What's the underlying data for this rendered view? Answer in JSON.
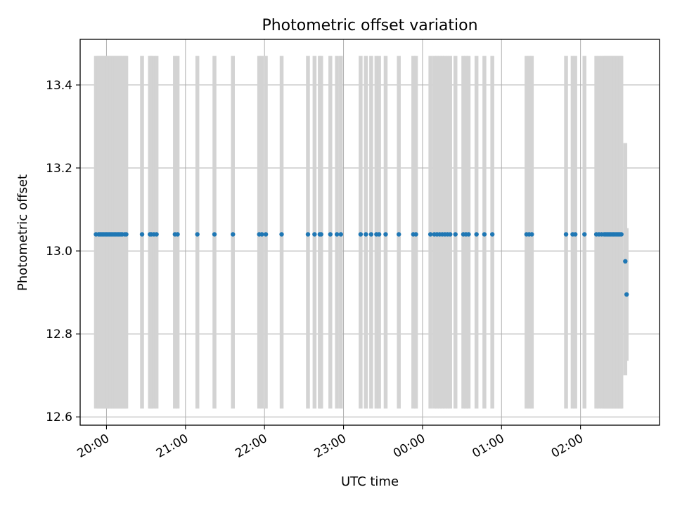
{
  "chart_data": {
    "type": "scatter",
    "title": "Photometric offset variation",
    "xlabel": "UTC time",
    "ylabel": "Photometric offset",
    "x_axis": "time",
    "xlim": [
      "19:40",
      "03:00"
    ],
    "ylim": [
      12.58,
      13.51
    ],
    "grid": true,
    "xticks": [
      "20:00",
      "21:00",
      "22:00",
      "23:00",
      "00:00",
      "01:00",
      "02:00"
    ],
    "yticks": [
      "12.6",
      "12.8",
      "13.0",
      "13.2",
      "13.4"
    ],
    "marker_color": "#1f77b4",
    "errorbar_color": "#d3d3d3",
    "series": [
      {
        "x": [
          "19:52",
          "19:54",
          "19:55",
          "19:56",
          "19:57",
          "19:58",
          "19:59",
          "20:00",
          "20:01",
          "20:02",
          "20:03",
          "20:04",
          "20:05",
          "20:06",
          "20:07",
          "20:08",
          "20:09",
          "20:10",
          "20:11",
          "20:12",
          "20:14",
          "20:15",
          "20:27",
          "20:33",
          "20:34",
          "20:36",
          "20:38",
          "20:52",
          "20:54",
          "21:09",
          "21:22",
          "21:36",
          "21:56",
          "21:58",
          "22:01",
          "22:13",
          "22:33",
          "22:38",
          "22:42",
          "22:43",
          "22:50",
          "22:55",
          "22:58",
          "23:13",
          "23:17",
          "23:21",
          "23:25",
          "23:27",
          "23:32",
          "23:42",
          "23:53",
          "23:55",
          "00:06",
          "00:09",
          "00:11",
          "00:13",
          "00:15",
          "00:17",
          "00:19",
          "00:21",
          "00:25",
          "00:31",
          "00:33",
          "00:35",
          "00:41",
          "00:47",
          "00:53",
          "01:19",
          "01:21",
          "01:23",
          "01:49",
          "01:54",
          "01:56",
          "02:03",
          "02:12",
          "02:14",
          "02:16",
          "02:18",
          "02:19",
          "02:20",
          "02:21",
          "02:22",
          "02:23",
          "02:24",
          "02:25",
          "02:26",
          "02:27",
          "02:28",
          "02:29",
          "02:30",
          "02:31"
        ],
        "y": [
          13.04,
          13.04,
          13.04,
          13.04,
          13.04,
          13.04,
          13.04,
          13.04,
          13.04,
          13.04,
          13.04,
          13.04,
          13.04,
          13.04,
          13.04,
          13.04,
          13.04,
          13.04,
          13.04,
          13.04,
          13.04,
          13.04,
          13.04,
          13.04,
          13.04,
          13.04,
          13.04,
          13.04,
          13.04,
          13.04,
          13.04,
          13.04,
          13.04,
          13.04,
          13.04,
          13.04,
          13.04,
          13.04,
          13.04,
          13.04,
          13.04,
          13.04,
          13.04,
          13.04,
          13.04,
          13.04,
          13.04,
          13.04,
          13.04,
          13.04,
          13.04,
          13.04,
          13.04,
          13.04,
          13.04,
          13.04,
          13.04,
          13.04,
          13.04,
          13.04,
          13.04,
          13.04,
          13.04,
          13.04,
          13.04,
          13.04,
          13.04,
          13.04,
          13.04,
          13.04,
          13.04,
          13.04,
          13.04,
          13.04,
          13.04,
          13.04,
          13.04,
          13.04,
          13.04,
          13.04,
          13.04,
          13.04,
          13.04,
          13.04,
          13.04,
          13.04,
          13.04,
          13.04,
          13.04,
          13.04,
          13.04
        ],
        "yerr_low": [
          12.62,
          12.62,
          12.62,
          12.62,
          12.62,
          12.62,
          12.62,
          12.62,
          12.62,
          12.62,
          12.62,
          12.62,
          12.62,
          12.62,
          12.62,
          12.62,
          12.62,
          12.62,
          12.62,
          12.62,
          12.62,
          12.62,
          12.62,
          12.62,
          12.62,
          12.62,
          12.62,
          12.62,
          12.62,
          12.62,
          12.62,
          12.62,
          12.62,
          12.62,
          12.62,
          12.62,
          12.62,
          12.62,
          12.62,
          12.62,
          12.62,
          12.62,
          12.62,
          12.62,
          12.62,
          12.62,
          12.62,
          12.62,
          12.62,
          12.62,
          12.62,
          12.62,
          12.62,
          12.62,
          12.62,
          12.62,
          12.62,
          12.62,
          12.62,
          12.62,
          12.62,
          12.62,
          12.62,
          12.62,
          12.62,
          12.62,
          12.62,
          12.62,
          12.62,
          12.62,
          12.62,
          12.62,
          12.62,
          12.62,
          12.62,
          12.62,
          12.62,
          12.62,
          12.62,
          12.62,
          12.62,
          12.62,
          12.62,
          12.62,
          12.62,
          12.62,
          12.62,
          12.62,
          12.62,
          12.62,
          12.62
        ],
        "yerr_high": [
          13.47,
          13.47,
          13.47,
          13.47,
          13.47,
          13.47,
          13.47,
          13.47,
          13.47,
          13.47,
          13.47,
          13.47,
          13.47,
          13.47,
          13.47,
          13.47,
          13.47,
          13.47,
          13.47,
          13.47,
          13.47,
          13.47,
          13.47,
          13.47,
          13.47,
          13.47,
          13.47,
          13.47,
          13.47,
          13.47,
          13.47,
          13.47,
          13.47,
          13.47,
          13.47,
          13.47,
          13.47,
          13.47,
          13.47,
          13.47,
          13.47,
          13.47,
          13.47,
          13.47,
          13.47,
          13.47,
          13.47,
          13.47,
          13.47,
          13.47,
          13.47,
          13.47,
          13.47,
          13.47,
          13.47,
          13.47,
          13.47,
          13.47,
          13.47,
          13.47,
          13.47,
          13.47,
          13.47,
          13.47,
          13.47,
          13.47,
          13.47,
          13.47,
          13.47,
          13.47,
          13.47,
          13.47,
          13.47,
          13.47,
          13.47,
          13.47,
          13.47,
          13.47,
          13.47,
          13.47,
          13.47,
          13.47,
          13.47,
          13.47,
          13.47,
          13.47,
          13.47,
          13.47,
          13.47,
          13.47,
          13.47
        ]
      },
      {
        "x": [
          "02:34",
          "02:35"
        ],
        "y": [
          12.975,
          12.895
        ],
        "yerr_low": [
          12.7,
          12.735
        ],
        "yerr_high": [
          13.26,
          13.055
        ]
      }
    ]
  }
}
